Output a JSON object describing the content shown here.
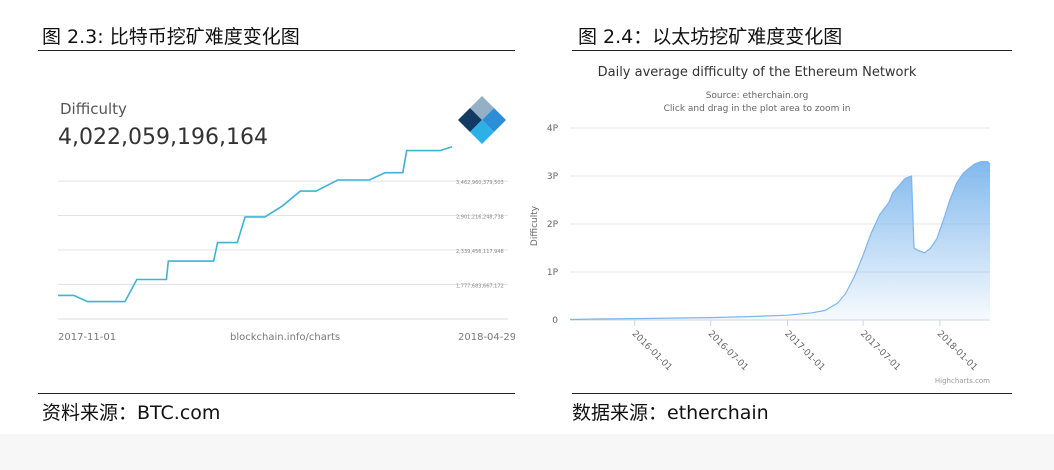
{
  "figures": [
    {
      "caption": "图 2.3: 比特币挖矿难度变化图",
      "source": "资料来源：BTC.com"
    },
    {
      "caption": "图 2.4：以太坊挖矿难度变化图",
      "source": "数据来源：etherchain"
    }
  ],
  "chart_data": [
    {
      "type": "line",
      "header_label": "Difficulty",
      "current_value": "4,022,059,196,164",
      "logo": "blockchain-cube-logo",
      "color": "#3eb3d3",
      "x_start_label": "2017-11-01",
      "x_end_label": "2018-04-29",
      "credit": "blockchain.info/charts",
      "y_tick_labels": [
        "3,462,960,379,503",
        "2,901,216,248,738",
        "2,339,456,117,948",
        "1,777,683,667,172"
      ],
      "y_ticks": [
        3462960379503,
        2901216248738,
        2339456117948,
        1777683667172
      ],
      "ylim": [
        1216000000000,
        4132000000000
      ],
      "grid": true,
      "x": [
        0,
        0.04,
        0.075,
        0.15,
        0.17,
        0.2,
        0.235,
        0.275,
        0.28,
        0.33,
        0.36,
        0.395,
        0.405,
        0.455,
        0.475,
        0.525,
        0.57,
        0.615,
        0.655,
        0.71,
        0.75,
        0.79,
        0.83,
        0.875,
        0.885,
        0.955,
        0.97,
        1.0
      ],
      "values": [
        1600000000000,
        1600000000000,
        1500000000000,
        1500000000000,
        1500000000000,
        1860000000000,
        1860000000000,
        1860000000000,
        2160000000000,
        2160000000000,
        2160000000000,
        2160000000000,
        2460000000000,
        2460000000000,
        2880000000000,
        2880000000000,
        3060000000000,
        3300000000000,
        3300000000000,
        3480000000000,
        3480000000000,
        3480000000000,
        3600000000000,
        3600000000000,
        3960000000000,
        3960000000000,
        3960000000000,
        4022000000000
      ]
    },
    {
      "type": "area",
      "title": "Daily average difficulty of the Ethereum Network",
      "subtitle_1": "Source: etherchain.org",
      "subtitle_2": "Click and drag in the plot area to zoom in",
      "ylabel": "Difficulty",
      "y_tick_labels": [
        "0",
        "1P",
        "2P",
        "3P",
        "4P"
      ],
      "ylim": [
        0,
        4
      ],
      "x_tick_labels": [
        "2016-01-01",
        "2016-07-01",
        "2017-01-01",
        "2017-07-01",
        "2018-01-01"
      ],
      "credits": "Highcharts.com",
      "color": "#7cb5ec",
      "grid": true,
      "x": [
        "2015-07-30",
        "2015-10-01",
        "2016-01-01",
        "2016-04-01",
        "2016-07-01",
        "2016-10-01",
        "2017-01-01",
        "2017-03-01",
        "2017-04-01",
        "2017-05-01",
        "2017-05-20",
        "2017-06-10",
        "2017-07-01",
        "2017-07-20",
        "2017-08-10",
        "2017-09-01",
        "2017-09-10",
        "2017-09-25",
        "2017-10-10",
        "2017-10-25",
        "2017-10-31",
        "2017-11-10",
        "2017-11-25",
        "2017-12-10",
        "2017-12-25",
        "2018-01-10",
        "2018-01-25",
        "2018-02-10",
        "2018-02-25",
        "2018-03-10",
        "2018-03-25",
        "2018-04-10",
        "2018-04-25",
        "2018-05-01"
      ],
      "values": [
        0.01,
        0.02,
        0.03,
        0.04,
        0.05,
        0.07,
        0.1,
        0.15,
        0.2,
        0.35,
        0.55,
        0.9,
        1.35,
        1.8,
        2.2,
        2.45,
        2.65,
        2.8,
        2.95,
        3.0,
        1.5,
        1.45,
        1.4,
        1.5,
        1.7,
        2.1,
        2.5,
        2.85,
        3.05,
        3.15,
        3.25,
        3.3,
        3.3,
        3.25
      ]
    }
  ]
}
